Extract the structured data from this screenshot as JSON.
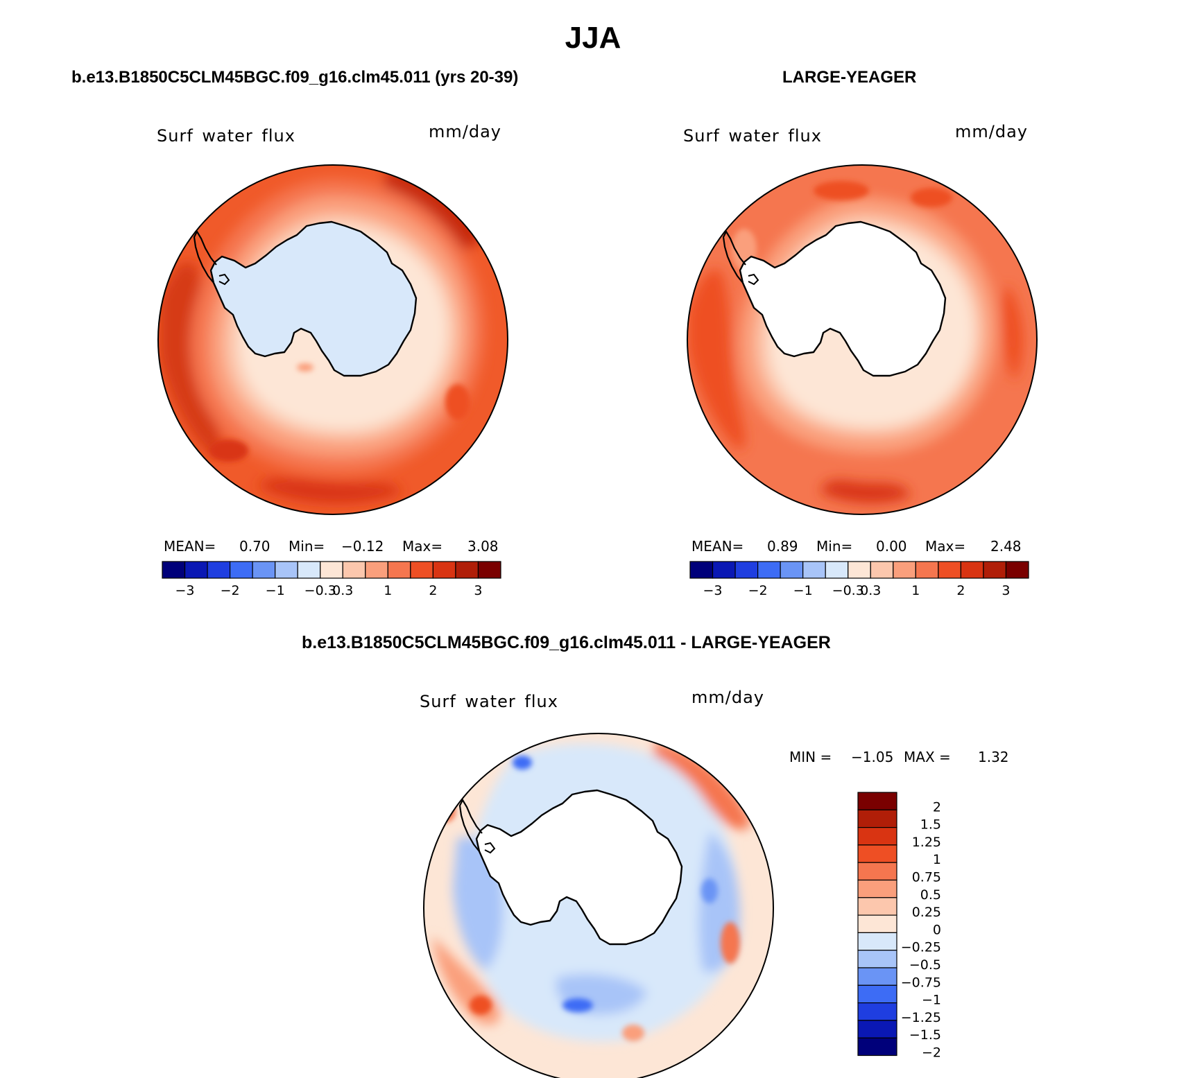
{
  "figure": {
    "title": "JJA",
    "colors": {
      "absolute_scale": [
        "#00007a",
        "#0a18b4",
        "#1f3ee0",
        "#3d6cf5",
        "#6a94f5",
        "#a8c4f8",
        "#d8e8fa",
        "#fde6d6",
        "#fcc7ad",
        "#fa9f7c",
        "#f5764f",
        "#ee4f24",
        "#d93412",
        "#b01e08",
        "#7a0000"
      ],
      "difference_scale": [
        "#00007a",
        "#0a18b4",
        "#1f3ee0",
        "#3d6cf5",
        "#6a94f5",
        "#a8c4f8",
        "#d8e8fa",
        "#fde6d6",
        "#fcc7ad",
        "#fa9f7c",
        "#f5764f",
        "#ee4f24",
        "#d93412",
        "#b01e08",
        "#7a0000"
      ],
      "land_fill": "#ffffff",
      "coast_line": "#000000"
    }
  },
  "panels": [
    {
      "id": "model",
      "header": "b.e13.B1850C5CLM45BGC.f09_g16.clm45.011 (yrs 20-39)",
      "variable": "Surf water flux",
      "units": "mm/day",
      "stats": {
        "mean_label": "MEAN=",
        "mean": "0.70",
        "min_label": "Min=",
        "min": "−0.12",
        "max_label": "Max=",
        "max": "3.08"
      },
      "colorbar_ticks": [
        "−3",
        "−2",
        "−1",
        "−0.3",
        "0.3",
        "1",
        "2",
        "3"
      ],
      "antarctica_fill": "#d8e8fa"
    },
    {
      "id": "obs",
      "header": "LARGE-YEAGER",
      "variable": "Surf water flux",
      "units": "mm/day",
      "stats": {
        "mean_label": "MEAN=",
        "mean": "0.89",
        "min_label": "Min=",
        "min": "0.00",
        "max_label": "Max=",
        "max": "2.48"
      },
      "colorbar_ticks": [
        "−3",
        "−2",
        "−1",
        "−0.3",
        "0.3",
        "1",
        "2",
        "3"
      ],
      "antarctica_fill": "#ffffff"
    }
  ],
  "difference": {
    "header": "b.e13.B1850C5CLM45BGC.f09_g16.clm45.011 - LARGE-YEAGER",
    "variable": "Surf water flux",
    "units": "mm/day",
    "stats": {
      "min_label": "MIN =",
      "min": "−1.05",
      "max_label": "MAX =",
      "max": "1.32"
    },
    "colorbar_labels": [
      "2",
      "1.5",
      "1.25",
      "1",
      "0.75",
      "0.5",
      "0.25",
      "0",
      "−0.25",
      "−0.5",
      "−0.75",
      "−1",
      "−1.25",
      "−1.5",
      "−2"
    ]
  }
}
